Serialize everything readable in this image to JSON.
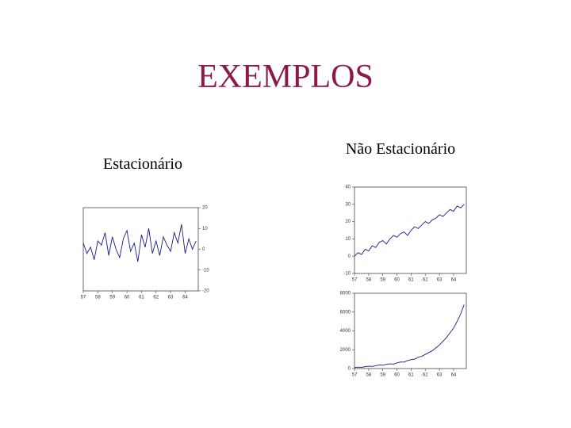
{
  "title": "EXEMPLOS",
  "left_heading": "Estacionário",
  "right_heading": "Não Estacionário",
  "chart_data": [
    {
      "type": "line",
      "x": [
        57,
        57.25,
        57.5,
        57.75,
        58,
        58.25,
        58.5,
        58.75,
        59,
        59.25,
        59.5,
        59.75,
        60,
        60.25,
        60.5,
        60.75,
        61,
        61.25,
        61.5,
        61.75,
        62,
        62.25,
        62.5,
        62.75,
        63,
        63.25,
        63.5,
        63.75,
        64,
        64.25,
        64.5,
        64.75
      ],
      "series": [
        {
          "color": "#1a1a8c",
          "values": [
            3,
            -2,
            1,
            -5,
            4,
            2,
            8,
            -3,
            6,
            0,
            -4,
            5,
            9,
            -1,
            3,
            -6,
            7,
            1,
            10,
            -2,
            4,
            -3,
            6,
            2,
            -1,
            8,
            3,
            12,
            -2,
            5,
            0,
            4
          ]
        }
      ],
      "xlim": [
        57,
        64.9
      ],
      "xticks": [
        57,
        58,
        59,
        60,
        61,
        62,
        63,
        64
      ],
      "ylim": [
        -20,
        20
      ],
      "yticks": [
        -20,
        -10,
        0,
        10,
        20
      ]
    },
    {
      "type": "line",
      "x": [
        57,
        57.25,
        57.5,
        57.75,
        58,
        58.25,
        58.5,
        58.75,
        59,
        59.25,
        59.5,
        59.75,
        60,
        60.25,
        60.5,
        60.75,
        61,
        61.25,
        61.5,
        61.75,
        62,
        62.25,
        62.5,
        62.75,
        63,
        63.25,
        63.5,
        63.75,
        64,
        64.25,
        64.5,
        64.75
      ],
      "series": [
        {
          "color": "#1a1a8c",
          "values": [
            0,
            2,
            1,
            4,
            3,
            6,
            5,
            8,
            9,
            7,
            10,
            12,
            11,
            13,
            14,
            12,
            15,
            17,
            16,
            18,
            20,
            19,
            21,
            22,
            24,
            23,
            25,
            27,
            26,
            29,
            28,
            30
          ]
        }
      ],
      "xlim": [
        57,
        64.9
      ],
      "xticks": [
        57,
        58,
        59,
        60,
        61,
        62,
        63,
        64
      ],
      "ylim": [
        -10,
        40
      ],
      "yticks": [
        -10,
        0,
        10,
        20,
        30,
        40
      ]
    },
    {
      "type": "line",
      "x": [
        57,
        57.25,
        57.5,
        57.75,
        58,
        58.25,
        58.5,
        58.75,
        59,
        59.25,
        59.5,
        59.75,
        60,
        60.25,
        60.5,
        60.75,
        61,
        61.25,
        61.5,
        61.75,
        62,
        62.25,
        62.5,
        62.75,
        63,
        63.25,
        63.5,
        63.75,
        64,
        64.25,
        64.5,
        64.75
      ],
      "series": [
        {
          "color": "#1a1a8c",
          "values": [
            100,
            150,
            120,
            200,
            250,
            230,
            300,
            380,
            350,
            450,
            500,
            480,
            600,
            700,
            680,
            850,
            950,
            1000,
            1200,
            1300,
            1500,
            1700,
            1900,
            2200,
            2500,
            2900,
            3300,
            3800,
            4300,
            5000,
            5800,
            6800
          ]
        }
      ],
      "xlim": [
        57,
        64.9
      ],
      "xticks": [
        57,
        58,
        59,
        60,
        61,
        62,
        63,
        64
      ],
      "ylim": [
        0,
        8000
      ],
      "yticks": [
        0,
        2000,
        4000,
        6000,
        8000
      ]
    }
  ]
}
